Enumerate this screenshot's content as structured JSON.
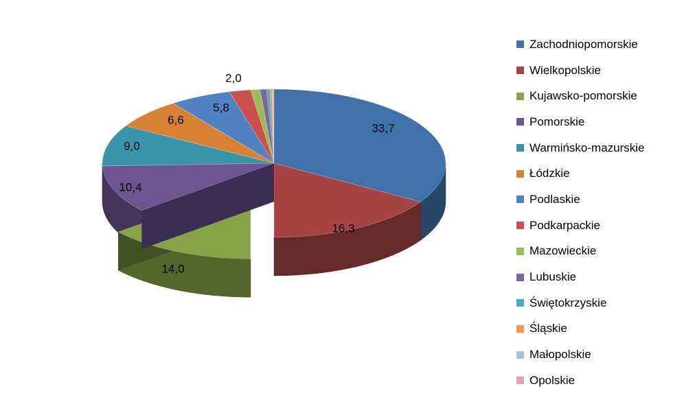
{
  "chart_data": {
    "type": "pie",
    "title": "",
    "exploded_series": "Kujawsko-pomorskie",
    "legend_position": "right",
    "slices": [
      {
        "name": "Zachodniopomorskie",
        "value": 33.7,
        "label": "33,7",
        "color": "#4270A8"
      },
      {
        "name": "Wielkopolskie",
        "value": 16.3,
        "label": "16,3",
        "color": "#A64444"
      },
      {
        "name": "Kujawsko-pomorskie",
        "value": 14.0,
        "label": "14,0",
        "color": "#86A447"
      },
      {
        "name": "Pomorskie",
        "value": 10.4,
        "label": "10,4",
        "color": "#6E5490"
      },
      {
        "name": "Warmińsko-mazurskie",
        "value": 9.0,
        "label": "9,0",
        "color": "#3A94AA"
      },
      {
        "name": "Łódzkie",
        "value": 6.6,
        "label": "6,6",
        "color": "#D78134"
      },
      {
        "name": "Podlaskie",
        "value": 5.8,
        "label": "5,8",
        "color": "#5082C4"
      },
      {
        "name": "Podkarpackie",
        "value": 2.0,
        "label": "2,0",
        "color": "#C9504D"
      },
      {
        "name": "Mazowieckie",
        "value": 0.9,
        "label": "",
        "color": "#9DBB58"
      },
      {
        "name": "Lubuskie",
        "value": 0.6,
        "label": "",
        "color": "#8064A2"
      },
      {
        "name": "Świętokrzyskie",
        "value": 0.3,
        "label": "",
        "color": "#4BACC6"
      },
      {
        "name": "Śląskie",
        "value": 0.2,
        "label": "",
        "color": "#F79646"
      },
      {
        "name": "Małopolskie",
        "value": 0.1,
        "label": "",
        "color": "#A9BEE0"
      },
      {
        "name": "Opolskie",
        "value": 0.1,
        "label": "",
        "color": "#E2A7A6"
      }
    ]
  }
}
